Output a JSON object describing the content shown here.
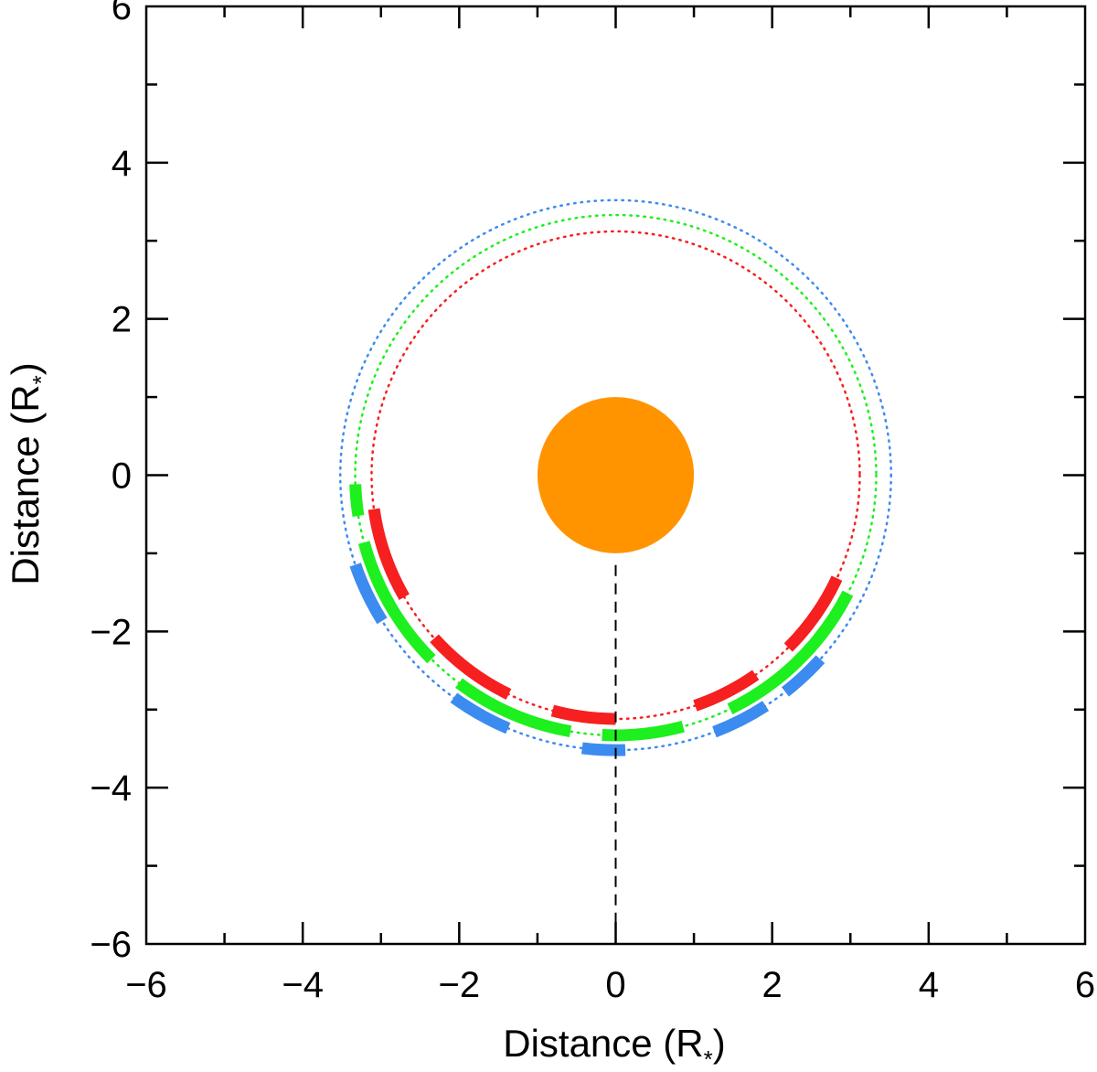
{
  "chart_data": {
    "type": "scatter",
    "title": "",
    "xlabel": "Distance (R",
    "xlabel_sub": "*",
    "xlabel_close": ")",
    "ylabel": "Distance (R",
    "ylabel_sub": "*",
    "ylabel_close": ")",
    "xlim": [
      -6,
      6
    ],
    "ylim": [
      -6,
      6
    ],
    "major_ticks": [
      -6,
      -4,
      -2,
      0,
      2,
      4,
      6
    ],
    "major_tick_labels": [
      "−6",
      "−4",
      "−2",
      "0",
      "2",
      "4",
      "6"
    ],
    "minor_ticks": [
      -5,
      -3,
      -1,
      1,
      3,
      5
    ],
    "grid": false,
    "star": {
      "center": [
        0,
        0
      ],
      "radius": 1.0,
      "color": "#FF9400"
    },
    "sightline": {
      "x": 0,
      "y_from": -1.15,
      "y_to": -6.0,
      "color": "#000000",
      "style": "dashed"
    },
    "orbits": [
      {
        "name": "red",
        "color": "#F5201F",
        "radius": 3.12,
        "arcs_deg": [
          [
            188,
            210
          ],
          [
            222,
            244
          ],
          [
            255,
            270
          ],
          [
            289,
            305
          ],
          [
            315,
            335
          ]
        ]
      },
      {
        "name": "green",
        "color": "#1EEF1E",
        "radius": 3.33,
        "arcs_deg": [
          [
            182,
            189
          ],
          [
            195,
            225
          ],
          [
            233,
            260
          ],
          [
            267,
            285
          ],
          [
            296,
            319
          ],
          [
            318,
            333
          ]
        ]
      },
      {
        "name": "blue",
        "color": "#3C8BF0",
        "radius": 3.52,
        "arcs_deg": [
          [
            199,
            212
          ],
          [
            234,
            247
          ],
          [
            263,
            272
          ],
          [
            291,
            303
          ],
          [
            308,
            318
          ]
        ]
      }
    ]
  }
}
